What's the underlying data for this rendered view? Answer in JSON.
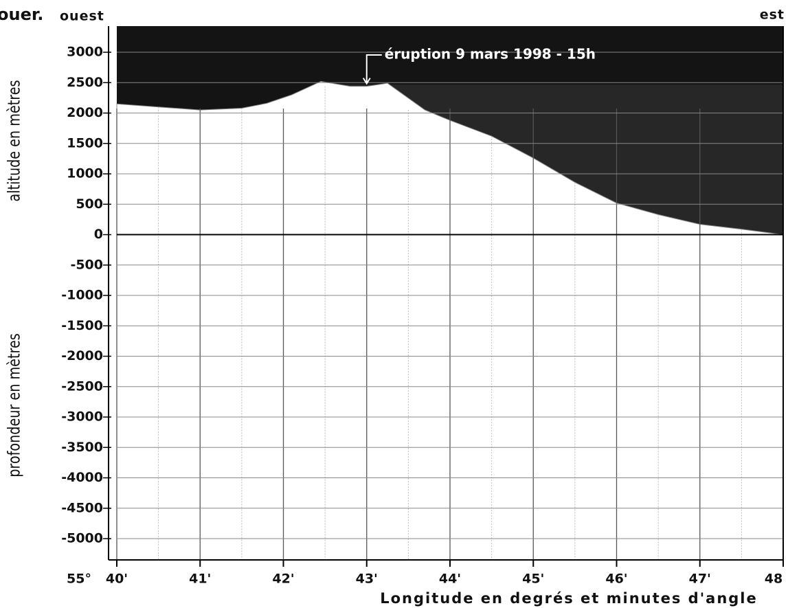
{
  "chart_data": {
    "type": "area",
    "title": "ouer.",
    "west_label": "ouest",
    "east_label": "est",
    "x_label": "Longitude en degrés et minutes d'angle",
    "y_label_top": "altitude en mètres",
    "y_label_bottom": "profondeur en mètres",
    "degree_label": "55°",
    "x": [
      40,
      40.5,
      41,
      41.5,
      41.8,
      42.1,
      42.45,
      42.8,
      43,
      43.25,
      43.7,
      44,
      44.5,
      45,
      45.5,
      46,
      46.5,
      47,
      47.5,
      48
    ],
    "values": [
      2150,
      2100,
      2050,
      2080,
      2160,
      2300,
      2520,
      2440,
      2440,
      2490,
      2050,
      1880,
      1620,
      1260,
      860,
      520,
      330,
      170,
      90,
      0
    ],
    "color": "#ffffff",
    "sky_color": "#141414",
    "xlim": [
      40,
      48
    ],
    "ylim": [
      -5350,
      3430
    ],
    "xticks": [
      {
        "value": 40,
        "label": "40'"
      },
      {
        "value": 41,
        "label": "41'"
      },
      {
        "value": 42,
        "label": "42'"
      },
      {
        "value": 43,
        "label": "43'"
      },
      {
        "value": 44,
        "label": "44'"
      },
      {
        "value": 45,
        "label": "45'"
      },
      {
        "value": 46,
        "label": "46'"
      },
      {
        "value": 47,
        "label": "47'"
      },
      48
    ],
    "xminorticks": [
      40.5,
      41.5,
      42.5,
      43.5,
      44.5,
      45.5,
      46.5,
      47.5
    ],
    "yticks": [
      3000,
      2500,
      2000,
      1500,
      1000,
      500,
      0,
      -500,
      -1000,
      -1500,
      -2000,
      -2500,
      -3000,
      -3500,
      -4000,
      -4500,
      -5000
    ],
    "grid": true,
    "annotation": {
      "text": "éruption 9 mars 1998 - 15h",
      "x": 43,
      "y": 2440
    }
  }
}
